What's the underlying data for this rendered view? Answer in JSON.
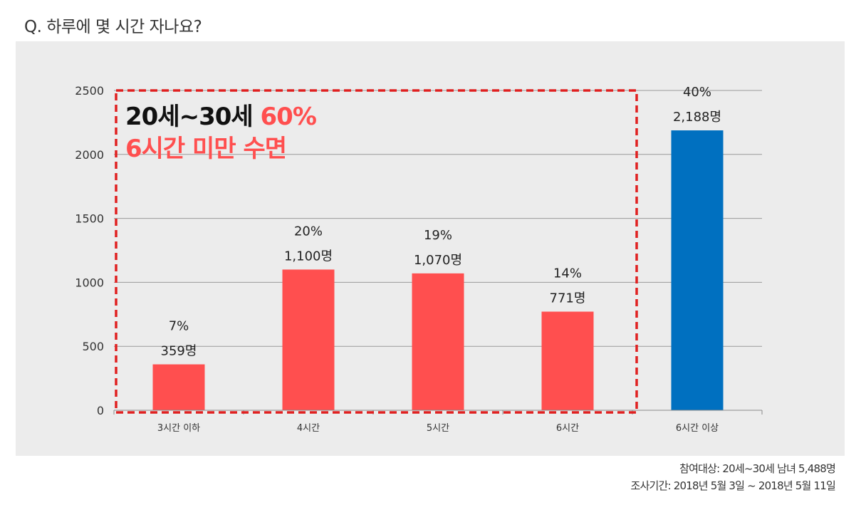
{
  "question": "Q. 하루에 몇 시간 자나요?",
  "callout": {
    "line1_prefix": "20세~30세 ",
    "line1_highlight": "60%",
    "line2": "6시간 미만 수면"
  },
  "footnote": {
    "participants": "참여대상: 20세~30세 남녀 5,488명",
    "period": "조사기간: 2018년 5월 3일 ~ 2018년 5월 11일"
  },
  "colors": {
    "highlight_bar": "#ff4f4f",
    "other_bar": "#0070c0",
    "panel_bg": "#ececec",
    "dashed_box": "#e02020"
  },
  "chart_data": {
    "type": "bar",
    "title": "",
    "xlabel": "",
    "ylabel": "",
    "categories": [
      "3시간 이하",
      "4시간",
      "5시간",
      "6시간",
      "6시간 이상"
    ],
    "values": [
      359,
      1100,
      1070,
      771,
      2188
    ],
    "percent_labels": [
      "7%",
      "20%",
      "19%",
      "14%",
      "40%"
    ],
    "count_labels": [
      "359명",
      "1,100명",
      "1,070명",
      "771명",
      "2,188명"
    ],
    "bar_colors": [
      "#ff4f4f",
      "#ff4f4f",
      "#ff4f4f",
      "#ff4f4f",
      "#0070c0"
    ],
    "ylim": [
      0,
      2500
    ],
    "yticks": [
      0,
      500,
      1000,
      1500,
      2000,
      2500
    ],
    "grid": true,
    "highlighted_categories": [
      "3시간 이하",
      "4시간",
      "5시간",
      "6시간"
    ]
  }
}
